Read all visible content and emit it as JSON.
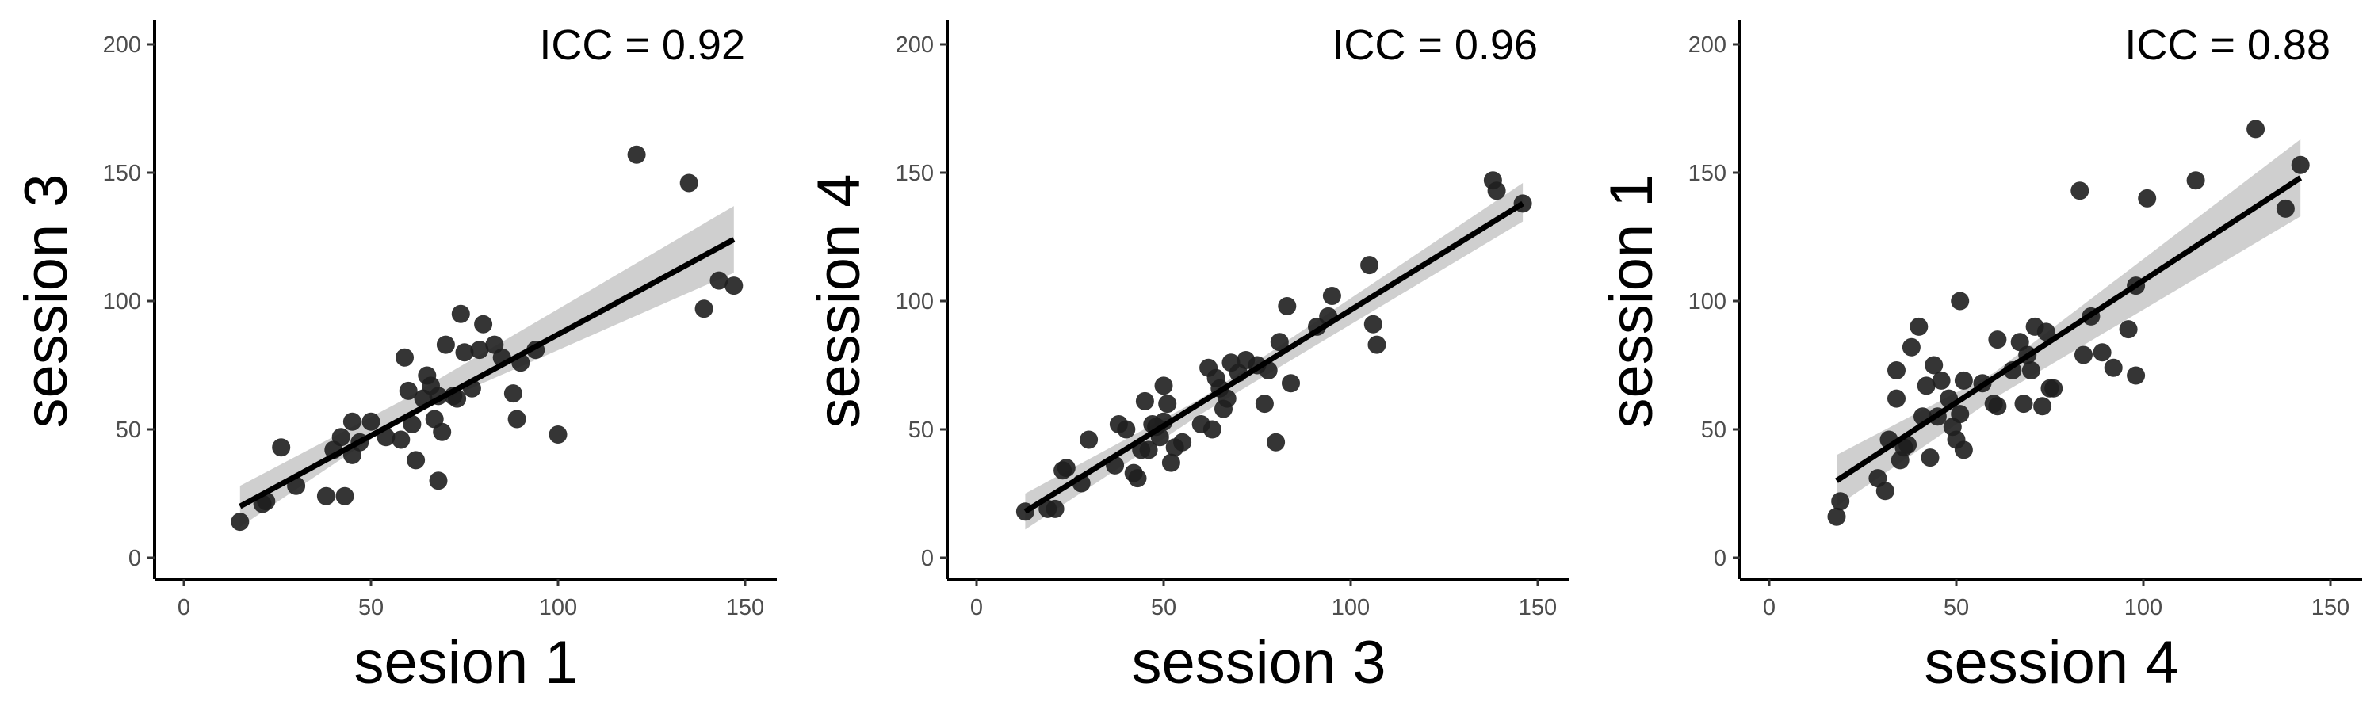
{
  "chart_data": [
    {
      "type": "scatter",
      "annotation": "ICC = 0.92",
      "xlabel": "sesion 1",
      "ylabel": "session 3",
      "xlim": [
        -7,
        157
      ],
      "ylim": [
        -12,
        210
      ],
      "xticks": [
        0,
        50,
        100,
        150
      ],
      "yticks": [
        0,
        50,
        100,
        150,
        200
      ],
      "grid": false,
      "point_color": "#1f1f1f",
      "fit_line": {
        "x": [
          15,
          147
        ],
        "y": [
          20,
          124
        ]
      },
      "ci_band": {
        "x": [
          15,
          58,
          147
        ],
        "lower": [
          12,
          54,
          111
        ],
        "upper": [
          28,
          61,
          137
        ]
      },
      "points": [
        {
          "x": 15,
          "y": 14
        },
        {
          "x": 21,
          "y": 21
        },
        {
          "x": 22,
          "y": 22
        },
        {
          "x": 26,
          "y": 43
        },
        {
          "x": 30,
          "y": 28
        },
        {
          "x": 38,
          "y": 24
        },
        {
          "x": 40,
          "y": 42
        },
        {
          "x": 42,
          "y": 47
        },
        {
          "x": 43,
          "y": 24
        },
        {
          "x": 45,
          "y": 40
        },
        {
          "x": 45,
          "y": 53
        },
        {
          "x": 47,
          "y": 45
        },
        {
          "x": 50,
          "y": 53
        },
        {
          "x": 54,
          "y": 47
        },
        {
          "x": 58,
          "y": 46
        },
        {
          "x": 59,
          "y": 78
        },
        {
          "x": 60,
          "y": 65
        },
        {
          "x": 61,
          "y": 52
        },
        {
          "x": 62,
          "y": 38
        },
        {
          "x": 64,
          "y": 62
        },
        {
          "x": 65,
          "y": 71
        },
        {
          "x": 66,
          "y": 67
        },
        {
          "x": 67,
          "y": 54
        },
        {
          "x": 68,
          "y": 63
        },
        {
          "x": 68,
          "y": 30
        },
        {
          "x": 69,
          "y": 49
        },
        {
          "x": 70,
          "y": 83
        },
        {
          "x": 72,
          "y": 63
        },
        {
          "x": 73,
          "y": 62
        },
        {
          "x": 74,
          "y": 95
        },
        {
          "x": 75,
          "y": 80
        },
        {
          "x": 77,
          "y": 66
        },
        {
          "x": 79,
          "y": 81
        },
        {
          "x": 80,
          "y": 91
        },
        {
          "x": 83,
          "y": 83
        },
        {
          "x": 85,
          "y": 78
        },
        {
          "x": 88,
          "y": 64
        },
        {
          "x": 89,
          "y": 54
        },
        {
          "x": 90,
          "y": 76
        },
        {
          "x": 94,
          "y": 81
        },
        {
          "x": 100,
          "y": 48
        },
        {
          "x": 121,
          "y": 157
        },
        {
          "x": 135,
          "y": 146
        },
        {
          "x": 139,
          "y": 97
        },
        {
          "x": 143,
          "y": 108
        },
        {
          "x": 147,
          "y": 106
        }
      ]
    },
    {
      "type": "scatter",
      "annotation": "ICC = 0.96",
      "xlabel": "session 3",
      "ylabel": "session 4",
      "xlim": [
        -7,
        157
      ],
      "ylim": [
        -12,
        210
      ],
      "xticks": [
        0,
        50,
        100,
        150
      ],
      "yticks": [
        0,
        50,
        100,
        150,
        200
      ],
      "grid": false,
      "point_color": "#1f1f1f",
      "fit_line": {
        "x": [
          13,
          146
        ],
        "y": [
          18,
          138
        ]
      },
      "ci_band": {
        "x": [
          13,
          60,
          146
        ],
        "lower": [
          11,
          56,
          131
        ],
        "upper": [
          25,
          62,
          146
        ]
      },
      "points": [
        {
          "x": 13,
          "y": 18
        },
        {
          "x": 19,
          "y": 19
        },
        {
          "x": 21,
          "y": 19
        },
        {
          "x": 23,
          "y": 34
        },
        {
          "x": 24,
          "y": 35
        },
        {
          "x": 28,
          "y": 29
        },
        {
          "x": 30,
          "y": 46
        },
        {
          "x": 37,
          "y": 36
        },
        {
          "x": 38,
          "y": 52
        },
        {
          "x": 40,
          "y": 50
        },
        {
          "x": 42,
          "y": 33
        },
        {
          "x": 43,
          "y": 31
        },
        {
          "x": 44,
          "y": 42
        },
        {
          "x": 45,
          "y": 61
        },
        {
          "x": 46,
          "y": 42
        },
        {
          "x": 47,
          "y": 52
        },
        {
          "x": 48,
          "y": 51
        },
        {
          "x": 49,
          "y": 47
        },
        {
          "x": 50,
          "y": 67
        },
        {
          "x": 50,
          "y": 53
        },
        {
          "x": 51,
          "y": 60
        },
        {
          "x": 52,
          "y": 37
        },
        {
          "x": 53,
          "y": 43
        },
        {
          "x": 55,
          "y": 45
        },
        {
          "x": 60,
          "y": 52
        },
        {
          "x": 62,
          "y": 74
        },
        {
          "x": 63,
          "y": 50
        },
        {
          "x": 64,
          "y": 70
        },
        {
          "x": 65,
          "y": 66
        },
        {
          "x": 66,
          "y": 58
        },
        {
          "x": 67,
          "y": 62
        },
        {
          "x": 68,
          "y": 76
        },
        {
          "x": 70,
          "y": 72
        },
        {
          "x": 72,
          "y": 77
        },
        {
          "x": 75,
          "y": 75
        },
        {
          "x": 77,
          "y": 60
        },
        {
          "x": 78,
          "y": 73
        },
        {
          "x": 80,
          "y": 45
        },
        {
          "x": 81,
          "y": 84
        },
        {
          "x": 83,
          "y": 98
        },
        {
          "x": 84,
          "y": 68
        },
        {
          "x": 91,
          "y": 90
        },
        {
          "x": 94,
          "y": 94
        },
        {
          "x": 95,
          "y": 102
        },
        {
          "x": 105,
          "y": 114
        },
        {
          "x": 106,
          "y": 91
        },
        {
          "x": 107,
          "y": 83
        },
        {
          "x": 138,
          "y": 147
        },
        {
          "x": 139,
          "y": 143
        },
        {
          "x": 146,
          "y": 138
        }
      ]
    },
    {
      "type": "scatter",
      "annotation": "ICC = 0.88",
      "xlabel": "session 4",
      "ylabel": "session 1",
      "xlim": [
        -7,
        157
      ],
      "ylim": [
        -12,
        210
      ],
      "xticks": [
        0,
        50,
        100,
        150
      ],
      "yticks": [
        0,
        50,
        100,
        150,
        200
      ],
      "grid": false,
      "point_color": "#1f1f1f",
      "fit_line": {
        "x": [
          18,
          142
        ],
        "y": [
          30,
          148
        ]
      },
      "ci_band": {
        "x": [
          18,
          60,
          142
        ],
        "lower": [
          20,
          62,
          133
        ],
        "upper": [
          40,
          72,
          163
        ]
      },
      "points": [
        {
          "x": 18,
          "y": 16
        },
        {
          "x": 19,
          "y": 22
        },
        {
          "x": 29,
          "y": 31
        },
        {
          "x": 31,
          "y": 26
        },
        {
          "x": 32,
          "y": 46
        },
        {
          "x": 34,
          "y": 62
        },
        {
          "x": 34,
          "y": 73
        },
        {
          "x": 35,
          "y": 38
        },
        {
          "x": 36,
          "y": 43
        },
        {
          "x": 37,
          "y": 44
        },
        {
          "x": 38,
          "y": 82
        },
        {
          "x": 40,
          "y": 90
        },
        {
          "x": 41,
          "y": 55
        },
        {
          "x": 42,
          "y": 67
        },
        {
          "x": 43,
          "y": 39
        },
        {
          "x": 44,
          "y": 75
        },
        {
          "x": 45,
          "y": 55
        },
        {
          "x": 46,
          "y": 69
        },
        {
          "x": 48,
          "y": 62
        },
        {
          "x": 49,
          "y": 51
        },
        {
          "x": 50,
          "y": 46
        },
        {
          "x": 51,
          "y": 100
        },
        {
          "x": 51,
          "y": 56
        },
        {
          "x": 52,
          "y": 69
        },
        {
          "x": 52,
          "y": 42
        },
        {
          "x": 57,
          "y": 68
        },
        {
          "x": 60,
          "y": 60
        },
        {
          "x": 61,
          "y": 59
        },
        {
          "x": 61,
          "y": 85
        },
        {
          "x": 65,
          "y": 73
        },
        {
          "x": 67,
          "y": 84
        },
        {
          "x": 68,
          "y": 60
        },
        {
          "x": 69,
          "y": 79
        },
        {
          "x": 70,
          "y": 73
        },
        {
          "x": 71,
          "y": 90
        },
        {
          "x": 73,
          "y": 59
        },
        {
          "x": 74,
          "y": 88
        },
        {
          "x": 75,
          "y": 66
        },
        {
          "x": 76,
          "y": 66
        },
        {
          "x": 83,
          "y": 143
        },
        {
          "x": 84,
          "y": 79
        },
        {
          "x": 86,
          "y": 94
        },
        {
          "x": 89,
          "y": 80
        },
        {
          "x": 92,
          "y": 74
        },
        {
          "x": 96,
          "y": 89
        },
        {
          "x": 98,
          "y": 71
        },
        {
          "x": 98,
          "y": 106
        },
        {
          "x": 101,
          "y": 140
        },
        {
          "x": 114,
          "y": 147
        },
        {
          "x": 130,
          "y": 167
        },
        {
          "x": 138,
          "y": 136
        },
        {
          "x": 142,
          "y": 153
        }
      ]
    }
  ]
}
